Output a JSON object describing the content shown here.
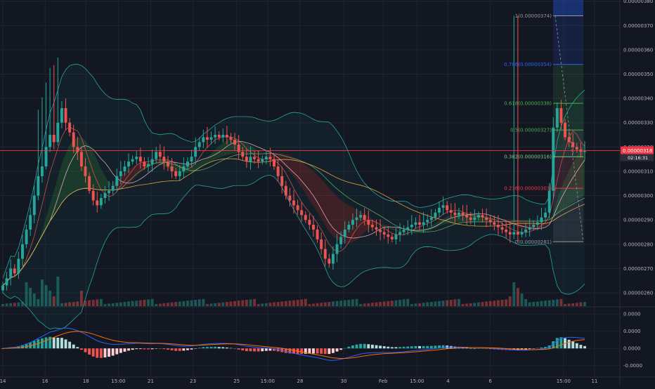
{
  "chart_data": {
    "type": "candlestick",
    "price_axis": {
      "ticks": [
        "0.00000380",
        "0.00000370",
        "0.00000360",
        "0.00000350",
        "0.00000340",
        "0.00000330",
        "0.00000320",
        "0.00000310",
        "0.00000300",
        "0.00000290",
        "0.00000280",
        "0.00000270",
        "0.00000260"
      ],
      "tick_values": [
        3.8,
        3.7,
        3.6,
        3.5,
        3.4,
        3.3,
        3.2,
        3.1,
        3.0,
        2.9,
        2.8,
        2.7,
        2.6
      ],
      "range": [
        2.545,
        3.805
      ],
      "current_price_label": "0.00000318",
      "current_price_value": 3.185,
      "countdown_label": "02:16:31"
    },
    "oscillator_axis": {
      "ticks": [
        "0.0000",
        "0.0000",
        "0.0000",
        "-0.0000"
      ],
      "tick_values": [
        0.85,
        0.45,
        0.05,
        -0.35
      ],
      "range": [
        -0.6,
        1.0
      ]
    },
    "time_axis": {
      "labels": [
        "14",
        "16",
        "18",
        "15:00",
        "21",
        "23",
        "25",
        "15:00",
        "28",
        "30",
        "Feb",
        "15:00",
        "4",
        "6",
        "15:00",
        "11"
      ],
      "positions": [
        2,
        32,
        61,
        84,
        107,
        137,
        168,
        190,
        213,
        244,
        272,
        296,
        318,
        348,
        400,
        422
      ]
    },
    "fibonacci": [
      {
        "label": "1(0.00000374)",
        "value": 3.74,
        "color": "#9598a1"
      },
      {
        "label": "0.786(0.00000354)",
        "value": 3.54,
        "color": "#2962ff"
      },
      {
        "label": "0.618(0.00000338)",
        "value": 3.38,
        "color": "#4caf50"
      },
      {
        "label": "0.5(0.00000327)",
        "value": 3.27,
        "color": "#4caf50"
      },
      {
        "label": "0.382(0.00000316)",
        "value": 3.16,
        "color": "#81c784"
      },
      {
        "label": "0.236(0.00000303)",
        "value": 3.03,
        "color": "#f23645"
      },
      {
        "label": "0(0.00000281)",
        "value": 2.81,
        "color": "#9598a1"
      }
    ],
    "candles": [
      {
        "c": 2.63
      },
      {
        "c": 2.66
      },
      {
        "c": 2.7
      },
      {
        "c": 2.68
      },
      {
        "c": 2.74
      },
      {
        "c": 2.8
      },
      {
        "c": 2.86
      },
      {
        "c": 2.92
      },
      {
        "c": 3.0
      },
      {
        "c": 3.08
      },
      {
        "c": 3.12
      },
      {
        "c": 3.2
      },
      {
        "c": 3.25
      },
      {
        "c": 3.22
      },
      {
        "c": 3.3
      },
      {
        "c": 3.36
      },
      {
        "c": 3.3
      },
      {
        "c": 3.26
      },
      {
        "c": 3.2
      },
      {
        "c": 3.18
      },
      {
        "c": 3.12
      },
      {
        "c": 3.08
      },
      {
        "c": 3.02
      },
      {
        "c": 2.98
      },
      {
        "c": 2.96
      },
      {
        "c": 2.99
      },
      {
        "c": 3.01
      },
      {
        "c": 3.02
      },
      {
        "c": 3.04
      },
      {
        "c": 3.08
      },
      {
        "c": 3.1
      },
      {
        "c": 3.12
      },
      {
        "c": 3.14
      },
      {
        "c": 3.15
      },
      {
        "c": 3.16
      },
      {
        "c": 3.14
      },
      {
        "c": 3.12
      },
      {
        "c": 3.13
      },
      {
        "c": 3.15
      },
      {
        "c": 3.18
      },
      {
        "c": 3.16
      },
      {
        "c": 3.14
      },
      {
        "c": 3.12
      },
      {
        "c": 3.1
      },
      {
        "c": 3.08
      },
      {
        "c": 3.1
      },
      {
        "c": 3.12
      },
      {
        "c": 3.14
      },
      {
        "c": 3.16
      },
      {
        "c": 3.2
      },
      {
        "c": 3.22
      },
      {
        "c": 3.24
      },
      {
        "c": 3.23
      },
      {
        "c": 3.24
      },
      {
        "c": 3.25
      },
      {
        "c": 3.24
      },
      {
        "c": 3.25
      },
      {
        "c": 3.24
      },
      {
        "c": 3.23
      },
      {
        "c": 3.21
      },
      {
        "c": 3.18
      },
      {
        "c": 3.16
      },
      {
        "c": 3.14
      },
      {
        "c": 3.16
      },
      {
        "c": 3.15
      },
      {
        "c": 3.14
      },
      {
        "c": 3.15
      },
      {
        "c": 3.16
      },
      {
        "c": 3.15
      },
      {
        "c": 3.12
      },
      {
        "c": 3.08
      },
      {
        "c": 3.04
      },
      {
        "c": 3.0
      },
      {
        "c": 2.98
      },
      {
        "c": 2.96
      },
      {
        "c": 2.94
      },
      {
        "c": 2.92
      },
      {
        "c": 2.9
      },
      {
        "c": 2.88
      },
      {
        "c": 2.86
      },
      {
        "c": 2.82
      },
      {
        "c": 2.78
      },
      {
        "c": 2.74
      },
      {
        "c": 2.72
      },
      {
        "c": 2.76
      },
      {
        "c": 2.8
      },
      {
        "c": 2.83
      },
      {
        "c": 2.86
      },
      {
        "c": 2.88
      },
      {
        "c": 2.9
      },
      {
        "c": 2.91
      },
      {
        "c": 2.92
      },
      {
        "c": 2.9
      },
      {
        "c": 2.88
      },
      {
        "c": 2.87
      },
      {
        "c": 2.86
      },
      {
        "c": 2.85
      },
      {
        "c": 2.84
      },
      {
        "c": 2.83
      },
      {
        "c": 2.82
      },
      {
        "c": 2.84
      },
      {
        "c": 2.85
      },
      {
        "c": 2.86
      },
      {
        "c": 2.87
      },
      {
        "c": 2.88
      },
      {
        "c": 2.89
      },
      {
        "c": 2.88
      },
      {
        "c": 2.89
      },
      {
        "c": 2.9
      },
      {
        "c": 2.91
      },
      {
        "c": 2.93
      },
      {
        "c": 2.95
      },
      {
        "c": 2.96
      },
      {
        "c": 2.94
      },
      {
        "c": 2.93
      },
      {
        "c": 2.92
      },
      {
        "c": 2.93
      },
      {
        "c": 2.92
      },
      {
        "c": 2.91
      },
      {
        "c": 2.9
      },
      {
        "c": 2.91
      },
      {
        "c": 2.92
      },
      {
        "c": 2.91
      },
      {
        "c": 2.9
      },
      {
        "c": 2.89
      },
      {
        "c": 2.88
      },
      {
        "c": 2.87
      },
      {
        "c": 2.86
      },
      {
        "c": 2.85
      },
      {
        "c": 2.84
      },
      {
        "c": 2.85
      },
      {
        "c": 2.84
      },
      {
        "c": 2.85
      },
      {
        "c": 2.86
      },
      {
        "c": 2.87
      },
      {
        "c": 2.88
      },
      {
        "c": 2.89
      },
      {
        "c": 2.91
      },
      {
        "c": 2.93
      },
      {
        "c": 3.02
      },
      {
        "c": 3.28
      },
      {
        "c": 3.36
      },
      {
        "c": 3.3
      },
      {
        "c": 3.24
      },
      {
        "c": 3.22
      },
      {
        "c": 3.2
      },
      {
        "c": 3.19
      },
      {
        "c": 3.18
      },
      {
        "c": 3.185
      }
    ]
  },
  "colors": {
    "background": "#131722",
    "up": "#26a69a",
    "down": "#ef5350",
    "price_line": "#f23645",
    "ichimoku_bull": "#2e7d32",
    "ichimoku_bear": "#b71c1c",
    "macd": "#2962ff",
    "signal": "#ff6d00"
  }
}
